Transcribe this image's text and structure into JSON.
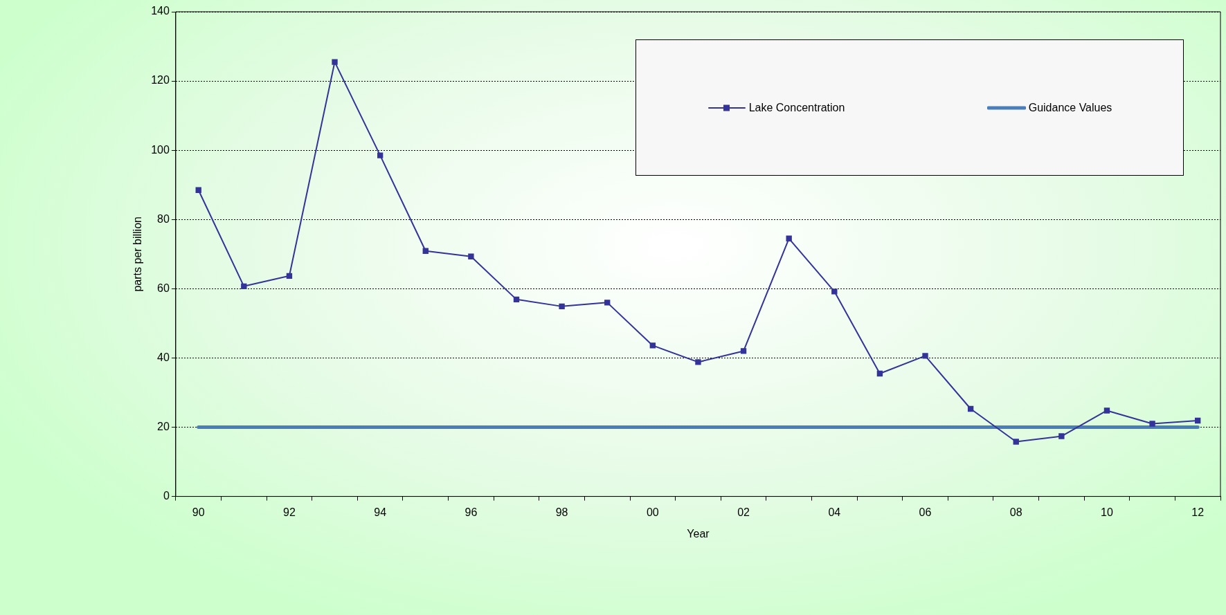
{
  "chart_data": {
    "type": "line",
    "xlabel": "Year",
    "ylabel": "parts per billion",
    "categories": [
      "90",
      null,
      "92",
      null,
      "94",
      null,
      "96",
      null,
      "98",
      null,
      "00",
      null,
      "02",
      null,
      "04",
      null,
      "06",
      null,
      "08",
      null,
      "10",
      null,
      "12"
    ],
    "series": [
      {
        "name": "Lake Concentration",
        "color": "#333399",
        "marker": "square",
        "values": [
          88.5,
          60.7,
          63.7,
          125.5,
          98.5,
          70.9,
          69.3,
          56.9,
          54.9,
          56.0,
          43.6,
          38.8,
          42.0,
          74.5,
          59.2,
          35.5,
          40.6,
          25.3,
          15.8,
          17.4,
          24.8,
          21.0,
          21.9
        ]
      },
      {
        "name": "Guidance Values",
        "color": "#4a7ebb",
        "marker": "none",
        "values": [
          20,
          20,
          20,
          20,
          20,
          20,
          20,
          20,
          20,
          20,
          20,
          20,
          20,
          20,
          20,
          20,
          20,
          20,
          20,
          20,
          20,
          20,
          20
        ]
      }
    ],
    "ylim": [
      0,
      140
    ],
    "yticks": [
      0,
      20,
      40,
      60,
      80,
      100,
      120,
      140
    ],
    "grid": "y",
    "legend": "top right"
  }
}
